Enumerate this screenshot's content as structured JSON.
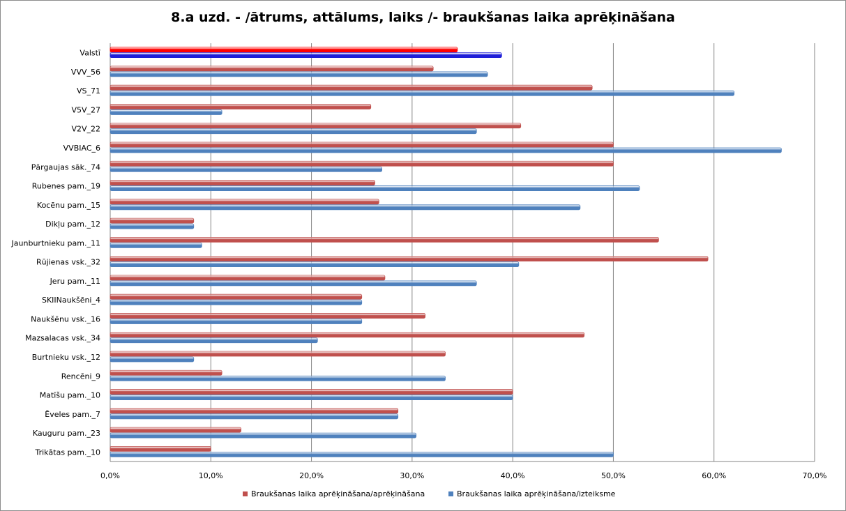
{
  "chart_data": {
    "type": "bar",
    "orientation": "horizontal",
    "title": "8.a uzd.  - /ātrums, attālums, laiks /- braukšanas laika aprēķināšana",
    "categories": [
      "Valstī",
      "VVV_56",
      "VS_71",
      "V5V_27",
      "V2V_22",
      "VVBIAC_6",
      "Pārgaujas sāk._74",
      "Rubenes pam._19",
      "Kocēnu pam._15",
      "Dikļu pam._12",
      "Jaunburtnieku pam._11",
      "Rūjienas vsk._32",
      "Jeru pam._11",
      "SKIINaukšēni_4",
      "Naukšēnu vsk._16",
      "Mazsalacas vsk._34",
      "Burtnieku vsk._12",
      "Rencēni_9",
      "Matīšu pam._10",
      "Ēveles pam._7",
      "Kauguru pam._23",
      "Trikātas pam._10"
    ],
    "series": [
      {
        "name": "Braukšanas laika aprēķināšana/aprēķināšana",
        "color": "#c0504d",
        "highlight_color": "#ff0000",
        "values": [
          34.5,
          32.1,
          47.9,
          25.9,
          40.8,
          50.0,
          50.0,
          26.3,
          26.7,
          8.3,
          54.5,
          59.4,
          27.3,
          25.0,
          31.3,
          47.1,
          33.3,
          11.1,
          40.0,
          28.6,
          13.0,
          10.0
        ]
      },
      {
        "name": "Braukšanas laika aprēķināšana/izteiksme",
        "color": "#4f81bd",
        "highlight_color": "#1f1fd8",
        "values": [
          38.9,
          37.5,
          62.0,
          11.1,
          36.4,
          66.7,
          27.0,
          52.6,
          46.7,
          8.3,
          9.1,
          40.6,
          36.4,
          25.0,
          25.0,
          20.6,
          8.3,
          33.3,
          40.0,
          28.6,
          30.4,
          50.0
        ]
      }
    ],
    "x_ticks": [
      "0,0%",
      "10,0%",
      "20,0%",
      "30,0%",
      "40,0%",
      "50,0%",
      "60,0%",
      "70,0%"
    ],
    "xlim": [
      0,
      70
    ],
    "grid": true,
    "legend_position": "bottom"
  }
}
